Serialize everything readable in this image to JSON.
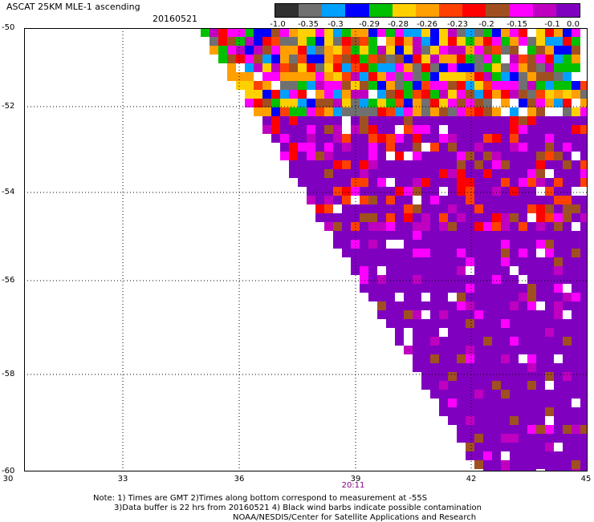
{
  "header": {
    "title": "ASCAT 25KM MLE-1 ascending",
    "date": "20160521"
  },
  "colorbar": {
    "colors": [
      "#303030",
      "#707070",
      "#00a0ff",
      "#0000ff",
      "#00c000",
      "#ffd000",
      "#ffa000",
      "#ff4000",
      "#ff0000",
      "#a05020",
      "#ff00ff",
      "#c000c0",
      "#8000c0"
    ],
    "ticks": [
      "-1.0",
      "-0.35",
      "-0.3",
      "-0.29",
      "-0.28",
      "-0.26",
      "-0.23",
      "-0.2",
      "-0.15",
      "-0.1",
      "0.0"
    ]
  },
  "map": {
    "lat_labels": [
      "-50",
      "-52",
      "-54",
      "-56",
      "-58",
      "-60"
    ],
    "lon_labels": [
      "30",
      "33",
      "36",
      "39",
      "42",
      "45"
    ],
    "time_label": "20:11",
    "background": "#ffffff",
    "grid_color": "#000000"
  },
  "notes": {
    "line1": "Note: 1) Times are GMT 2)Times along bottom correspond to measurement at -55S",
    "line2": "3)Data buffer is 22 hrs from 20160521 4) Black wind barbs indicate possible contamination",
    "line3": "NOAA/NESDIS/Center for Satellite Applications and Research"
  }
}
